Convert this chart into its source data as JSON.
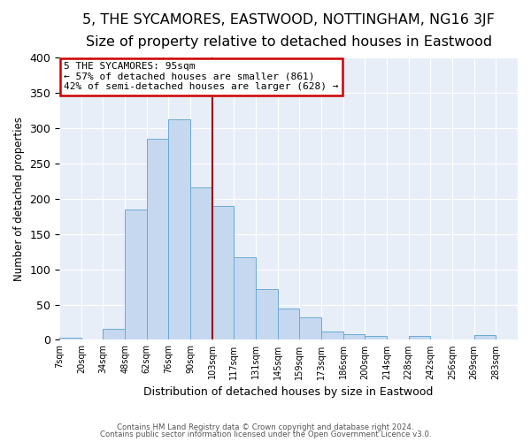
{
  "title": "5, THE SYCAMORES, EASTWOOD, NOTTINGHAM, NG16 3JF",
  "subtitle": "Size of property relative to detached houses in Eastwood",
  "xlabel": "Distribution of detached houses by size in Eastwood",
  "ylabel": "Number of detached properties",
  "bin_labels": [
    "7sqm",
    "20sqm",
    "34sqm",
    "48sqm",
    "62sqm",
    "76sqm",
    "90sqm",
    "103sqm",
    "117sqm",
    "131sqm",
    "145sqm",
    "159sqm",
    "173sqm",
    "186sqm",
    "200sqm",
    "214sqm",
    "228sqm",
    "242sqm",
    "256sqm",
    "269sqm",
    "283sqm"
  ],
  "bar_heights": [
    3,
    0,
    16,
    185,
    285,
    313,
    216,
    190,
    117,
    72,
    44,
    32,
    12,
    8,
    5,
    0,
    5,
    0,
    0,
    7,
    0
  ],
  "bar_color": "#c5d8f0",
  "bar_edge_color": "#6aaad4",
  "vline_x_index": 7,
  "vline_color": "#990000",
  "annotation_lines": [
    "5 THE SYCAMORES: 95sqm",
    "← 57% of detached houses are smaller (861)",
    "42% of semi-detached houses are larger (628) →"
  ],
  "annotation_box_color": "#ffffff",
  "annotation_box_edge": "#cc0000",
  "ylim": [
    0,
    400
  ],
  "yticks": [
    0,
    50,
    100,
    150,
    200,
    250,
    300,
    350,
    400
  ],
  "footer1": "Contains HM Land Registry data © Crown copyright and database right 2024.",
  "footer2": "Contains public sector information licensed under the Open Government Licence v3.0.",
  "bg_color": "#ffffff",
  "plot_bg_color": "#e8eef8",
  "grid_color": "#ffffff",
  "title_fontsize": 11.5,
  "subtitle_fontsize": 10
}
